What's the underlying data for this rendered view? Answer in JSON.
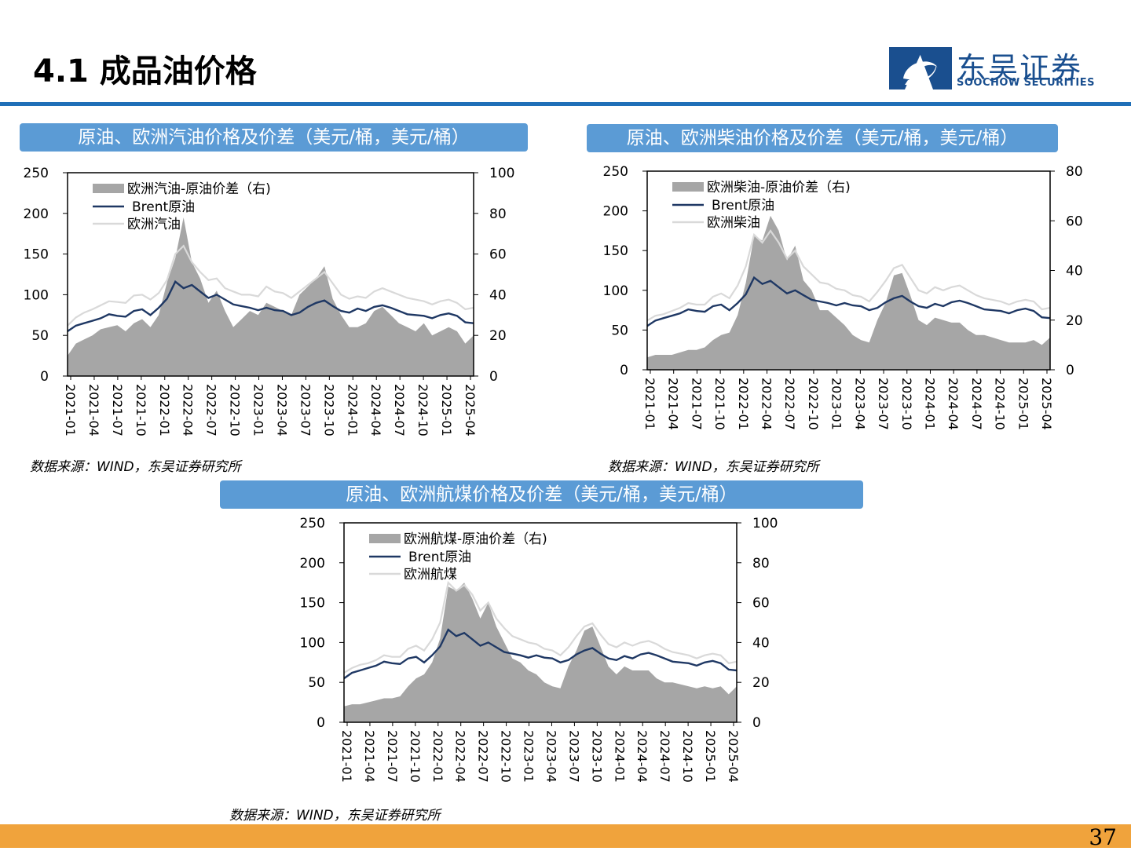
{
  "page": {
    "title": "4.1 成品油价格",
    "logo_cn": "东吴证券",
    "logo_en": "SOOCHOW SECURITIES",
    "page_number": "37",
    "source_text": "数据来源：WIND，东吴证券研究所"
  },
  "colors": {
    "spread": "#a6a6a6",
    "brent": "#1f3864",
    "product": "#d9d9d9",
    "banner": "#5b9bd5"
  },
  "chart_data": [
    {
      "type": "area",
      "title": "原油、欧洲汽油价格及价差（美元/桶，美元/桶）",
      "x_ticks": [
        "2021-01",
        "2021-04",
        "2021-07",
        "2021-10",
        "2022-01",
        "2022-04",
        "2022-07",
        "2022-10",
        "2023-01",
        "2023-04",
        "2023-07",
        "2023-10",
        "2024-01",
        "2024-04",
        "2024-07",
        "2024-10",
        "2025-01",
        "2025-04"
      ],
      "ylim_left": [
        0,
        250
      ],
      "yticks_left": [
        0,
        50,
        100,
        150,
        200,
        250
      ],
      "ylim_right": [
        0,
        100
      ],
      "yticks_right": [
        0,
        20,
        40,
        60,
        80,
        100
      ],
      "legend": [
        "欧洲汽油-原油价差（右)",
        "Brent原油",
        "欧洲汽油"
      ],
      "brent": [
        55,
        62,
        65,
        68,
        71,
        76,
        74,
        73,
        80,
        82,
        75,
        84,
        95,
        116,
        108,
        112,
        104,
        96,
        100,
        94,
        88,
        86,
        84,
        81,
        84,
        81,
        80,
        75,
        78,
        85,
        90,
        93,
        86,
        80,
        78,
        83,
        80,
        85,
        87,
        84,
        80,
        76,
        75,
        74,
        71,
        75,
        77,
        74,
        66,
        65
      ],
      "product": [
        62,
        72,
        78,
        82,
        87,
        92,
        91,
        90,
        99,
        100,
        94,
        102,
        118,
        150,
        160,
        140,
        128,
        118,
        120,
        108,
        104,
        100,
        100,
        98,
        110,
        104,
        102,
        96,
        104,
        112,
        120,
        128,
        114,
        100,
        95,
        98,
        96,
        104,
        108,
        104,
        100,
        96,
        94,
        92,
        88,
        92,
        94,
        90,
        82,
        84
      ],
      "spread": [
        10,
        16,
        18,
        20,
        23,
        24,
        25,
        22,
        26,
        28,
        24,
        30,
        46,
        58,
        78,
        56,
        48,
        36,
        42,
        32,
        24,
        28,
        32,
        30,
        36,
        34,
        32,
        30,
        40,
        44,
        48,
        54,
        38,
        30,
        24,
        24,
        26,
        32,
        34,
        30,
        26,
        24,
        22,
        26,
        20,
        22,
        24,
        22,
        16,
        20
      ]
    },
    {
      "type": "area",
      "title": "原油、欧洲柴油价格及价差（美元/桶，美元/桶）",
      "x_ticks": [
        "2021-01",
        "2021-04",
        "2021-07",
        "2021-10",
        "2022-01",
        "2022-04",
        "2022-07",
        "2022-10",
        "2023-01",
        "2023-04",
        "2023-07",
        "2023-10",
        "2024-01",
        "2024-04",
        "2024-07",
        "2024-10",
        "2025-01",
        "2025-04"
      ],
      "ylim_left": [
        0,
        250
      ],
      "yticks_left": [
        0,
        50,
        100,
        150,
        200,
        250
      ],
      "ylim_right": [
        0,
        80
      ],
      "yticks_right": [
        0,
        20,
        40,
        60,
        80
      ],
      "legend": [
        "欧洲柴油-原油价差（右)",
        "Brent原油",
        "欧洲柴油"
      ],
      "brent": [
        55,
        62,
        65,
        68,
        71,
        76,
        74,
        73,
        80,
        82,
        75,
        84,
        95,
        116,
        108,
        112,
        104,
        96,
        100,
        94,
        88,
        86,
        84,
        81,
        84,
        81,
        80,
        75,
        78,
        85,
        90,
        93,
        86,
        80,
        78,
        83,
        80,
        85,
        87,
        84,
        80,
        76,
        75,
        74,
        71,
        75,
        77,
        74,
        66,
        65
      ],
      "product": [
        62,
        68,
        70,
        74,
        78,
        84,
        82,
        82,
        92,
        96,
        90,
        106,
        130,
        170,
        160,
        175,
        160,
        140,
        150,
        130,
        120,
        110,
        108,
        102,
        100,
        94,
        92,
        86,
        98,
        112,
        128,
        132,
        116,
        100,
        96,
        104,
        100,
        104,
        106,
        100,
        94,
        90,
        88,
        86,
        82,
        86,
        88,
        86,
        76,
        78
      ],
      "spread": [
        5,
        6,
        6,
        6,
        7,
        8,
        8,
        9,
        12,
        14,
        15,
        22,
        35,
        54,
        52,
        62,
        56,
        44,
        50,
        36,
        32,
        24,
        24,
        21,
        18,
        14,
        12,
        11,
        20,
        27,
        38,
        39,
        30,
        20,
        18,
        21,
        20,
        19,
        19,
        16,
        14,
        14,
        13,
        12,
        11,
        11,
        11,
        12,
        10,
        13
      ]
    },
    {
      "type": "area",
      "title": "原油、欧洲航煤价格及价差（美元/桶，美元/桶）",
      "x_ticks": [
        "2021-01",
        "2021-04",
        "2021-07",
        "2021-10",
        "2022-01",
        "2022-04",
        "2022-07",
        "2022-10",
        "2023-01",
        "2023-04",
        "2023-07",
        "2023-10",
        "2024-01",
        "2024-04",
        "2024-07",
        "2024-10",
        "2025-01",
        "2025-04"
      ],
      "ylim_left": [
        0,
        250
      ],
      "yticks_left": [
        0,
        50,
        100,
        150,
        200,
        250
      ],
      "ylim_right": [
        0,
        100
      ],
      "yticks_right": [
        0,
        20,
        40,
        60,
        80,
        100
      ],
      "legend": [
        "欧洲航煤-原油价差（右)",
        "Brent原油",
        "欧洲航煤"
      ],
      "brent": [
        55,
        62,
        65,
        68,
        71,
        76,
        74,
        73,
        80,
        82,
        75,
        84,
        95,
        116,
        108,
        112,
        104,
        96,
        100,
        94,
        88,
        86,
        84,
        81,
        84,
        81,
        80,
        75,
        78,
        85,
        90,
        93,
        86,
        80,
        78,
        83,
        80,
        85,
        87,
        84,
        80,
        76,
        75,
        74,
        71,
        75,
        77,
        74,
        66,
        65
      ],
      "product": [
        62,
        68,
        72,
        74,
        78,
        84,
        82,
        82,
        92,
        96,
        90,
        104,
        125,
        175,
        165,
        172,
        160,
        140,
        150,
        130,
        118,
        108,
        104,
        100,
        98,
        92,
        90,
        84,
        94,
        108,
        120,
        124,
        110,
        98,
        94,
        100,
        96,
        100,
        102,
        98,
        92,
        88,
        86,
        84,
        80,
        84,
        86,
        84,
        74,
        76
      ],
      "spread": [
        8,
        9,
        9,
        10,
        11,
        12,
        12,
        13,
        18,
        22,
        24,
        30,
        42,
        68,
        66,
        70,
        62,
        52,
        60,
        48,
        40,
        32,
        30,
        26,
        24,
        20,
        18,
        17,
        28,
        36,
        46,
        48,
        38,
        28,
        24,
        28,
        26,
        26,
        26,
        22,
        20,
        20,
        19,
        18,
        17,
        18,
        17,
        18,
        14,
        18
      ]
    }
  ]
}
